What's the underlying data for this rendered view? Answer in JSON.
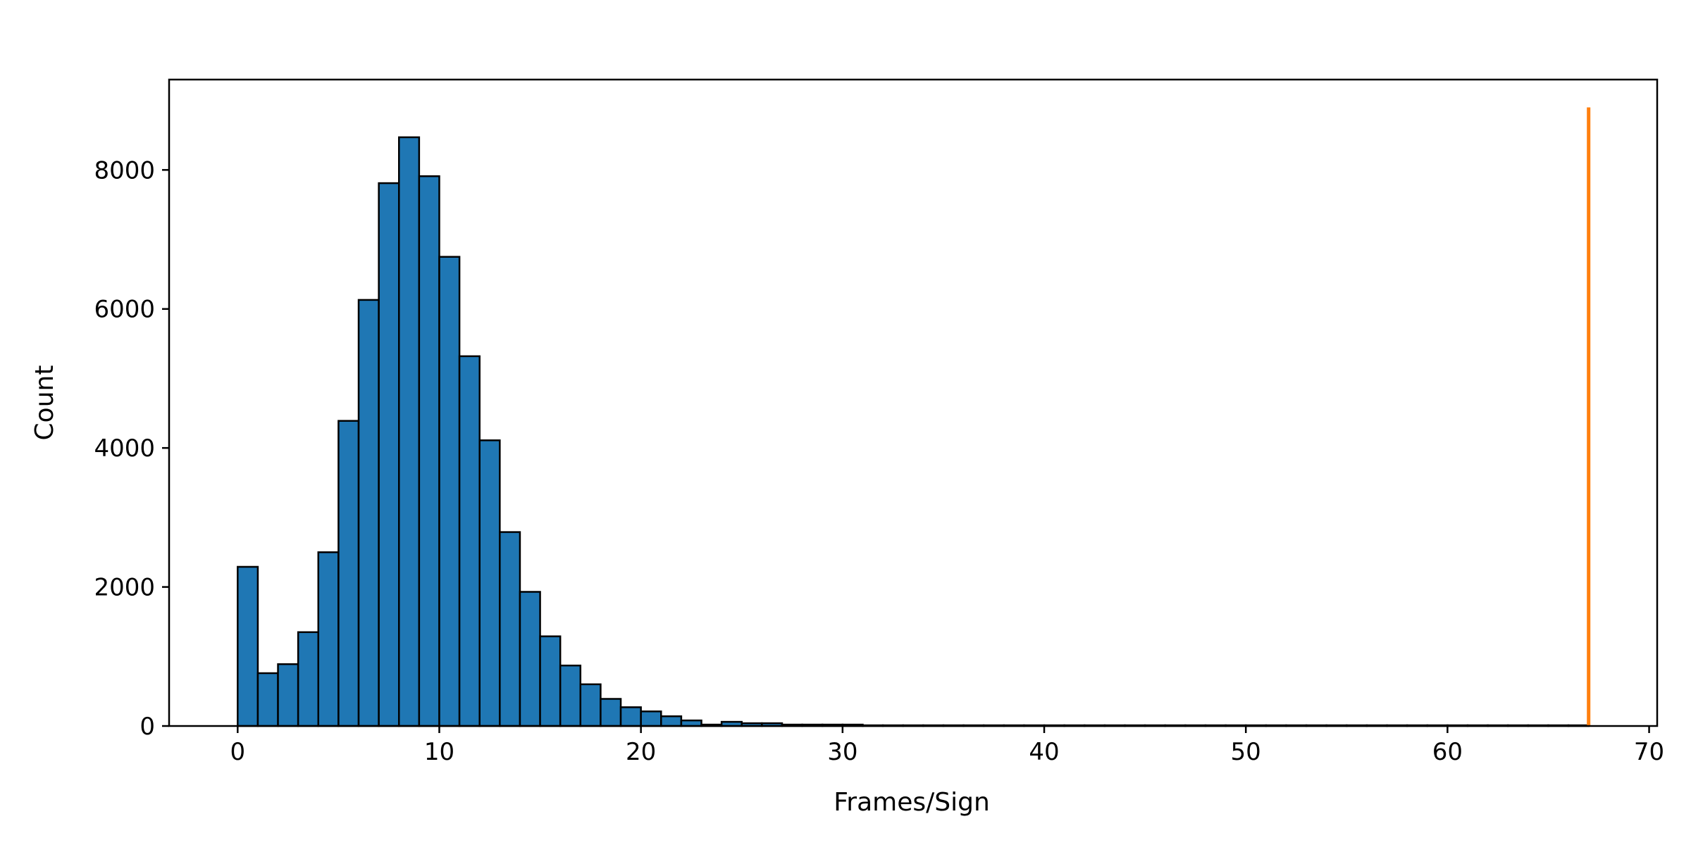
{
  "chart_data": {
    "type": "bar",
    "title": "",
    "xlabel": "Frames/Sign",
    "ylabel": "Count",
    "xlim": [
      -3.4,
      70.4
    ],
    "ylim": [
      0,
      9300
    ],
    "grid": false,
    "legend": "none",
    "bin_width": 1,
    "xticks": [
      {
        "value": 0,
        "label": "0"
      },
      {
        "value": 10,
        "label": "10"
      },
      {
        "value": 20,
        "label": "20"
      },
      {
        "value": 30,
        "label": "30"
      },
      {
        "value": 40,
        "label": "40"
      },
      {
        "value": 50,
        "label": "50"
      },
      {
        "value": 60,
        "label": "60"
      },
      {
        "value": 70,
        "label": "70"
      }
    ],
    "yticks": [
      {
        "value": 0,
        "label": "0"
      },
      {
        "value": 2000,
        "label": "2000"
      },
      {
        "value": 4000,
        "label": "4000"
      },
      {
        "value": 6000,
        "label": "6000"
      },
      {
        "value": 8000,
        "label": "8000"
      }
    ],
    "series": [
      {
        "bin_starts": [
          0,
          1,
          2,
          3,
          4,
          5,
          6,
          7,
          8,
          9,
          10,
          11,
          12,
          13,
          14,
          15,
          16,
          17,
          18,
          19,
          20,
          21,
          22,
          23,
          24,
          25,
          26,
          27,
          28,
          29,
          30,
          31,
          32,
          33,
          34,
          35,
          36,
          37,
          38,
          39,
          40,
          41,
          42,
          43,
          44,
          45,
          46,
          47,
          48,
          49,
          50,
          51,
          52,
          53,
          54,
          55,
          56,
          57,
          58,
          59,
          60,
          61,
          62,
          63,
          64,
          65,
          66
        ],
        "values": [
          2290,
          760,
          890,
          1350,
          2500,
          4390,
          6130,
          7810,
          8470,
          7910,
          6750,
          5320,
          4110,
          2790,
          1930,
          1290,
          870,
          600,
          390,
          270,
          210,
          140,
          80,
          20,
          60,
          40,
          40,
          20,
          20,
          20,
          20,
          10,
          10,
          10,
          10,
          10,
          10,
          10,
          10,
          10,
          10,
          10,
          10,
          10,
          10,
          10,
          10,
          10,
          10,
          10,
          10,
          10,
          10,
          10,
          10,
          10,
          10,
          10,
          10,
          10,
          10,
          10,
          10,
          10,
          10,
          10,
          10
        ],
        "color": "#1f77b4",
        "edgecolor": "#000000"
      }
    ],
    "reference_line": {
      "x": 67,
      "y_top": 8900,
      "color": "#ff7f0e"
    }
  }
}
